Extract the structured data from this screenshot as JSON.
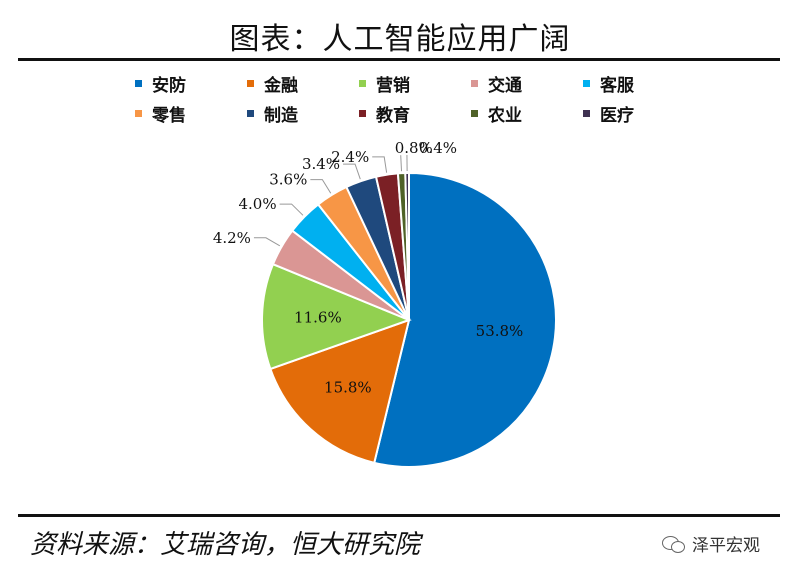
{
  "title": "图表：人工智能应用广阔",
  "source": "资料来源：艾瑞咨询，恒大研究院",
  "watermark": "泽平宏观",
  "chart_data": {
    "type": "pie",
    "title": "图表：人工智能应用广阔",
    "legend_position": "top",
    "categories": [
      "安防",
      "金融",
      "营销",
      "交通",
      "客服",
      "零售",
      "制造",
      "教育",
      "农业",
      "医疗"
    ],
    "values": [
      53.8,
      15.8,
      11.6,
      4.2,
      4.0,
      3.6,
      3.4,
      2.4,
      0.8,
      0.4
    ],
    "labels": [
      "53.8%",
      "15.8%",
      "11.6%",
      "4.2%",
      "4.0%",
      "3.6%",
      "3.4%",
      "2.4%",
      "0.8%",
      "0.4%"
    ],
    "colors": [
      "#0070C0",
      "#E36C09",
      "#92D050",
      "#DA9694",
      "#00B0F0",
      "#F79646",
      "#1F497D",
      "#7B2025",
      "#4F6228",
      "#3F3151"
    ]
  }
}
